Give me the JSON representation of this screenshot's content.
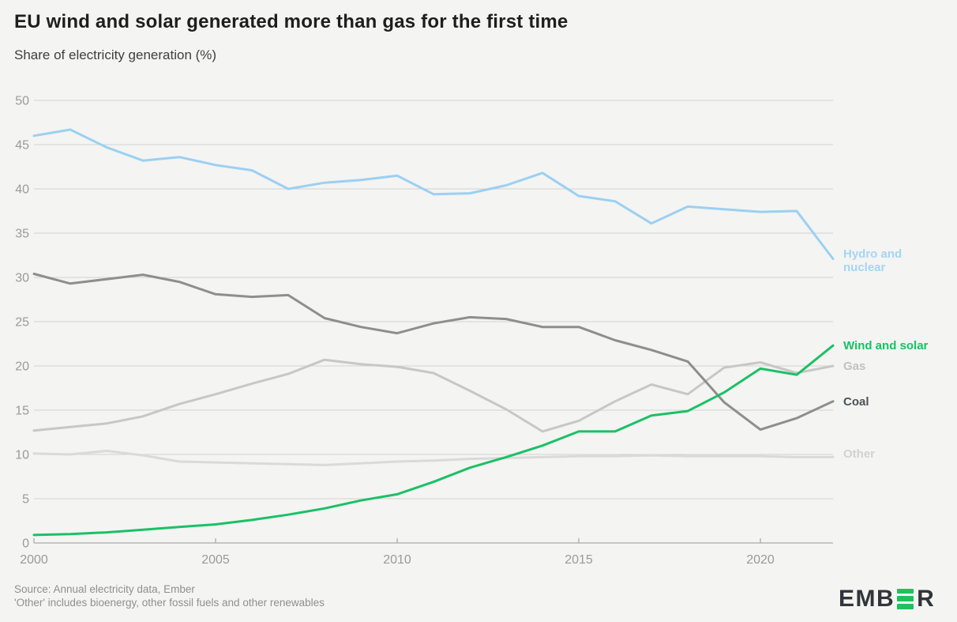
{
  "header": {
    "title": "EU wind and solar generated more than gas for the first time",
    "subtitle": "Share of electricity generation (%)"
  },
  "footer": {
    "source_line1": "Source: Annual electricity data, Ember",
    "source_line2": "'Other' includes bioenergy, other fossil fuels and other renewables",
    "logo_left": "EMB",
    "logo_right": "R"
  },
  "colors": {
    "background": "#f4f4f3",
    "gridline": "#d2d2d0",
    "axis_line": "#aaaaaa",
    "axis_text": "#9a9a9a",
    "logo_green": "#21c05f"
  },
  "chart_data": {
    "type": "line",
    "title": "EU wind and solar generated more than gas for the first time",
    "ylabel": "Share of electricity generation (%)",
    "ylim": [
      0,
      50
    ],
    "ytick_step": 5,
    "xticks": [
      2000,
      2005,
      2010,
      2015,
      2020
    ],
    "grid": true,
    "legend_position": "right-end-labels",
    "x": [
      2000,
      2001,
      2002,
      2003,
      2004,
      2005,
      2006,
      2007,
      2008,
      2009,
      2010,
      2011,
      2012,
      2013,
      2014,
      2015,
      2016,
      2017,
      2018,
      2019,
      2020,
      2021,
      2022
    ],
    "series": [
      {
        "name": "Other",
        "color": "#dadada",
        "label_lines": [
          "Other"
        ],
        "values": [
          10.1,
          10.0,
          10.4,
          9.9,
          9.2,
          9.1,
          9.0,
          8.9,
          8.8,
          9.0,
          9.2,
          9.3,
          9.5,
          9.6,
          9.7,
          9.8,
          9.8,
          9.9,
          9.8,
          9.8,
          9.8,
          9.7,
          9.7
        ]
      },
      {
        "name": "Gas",
        "color": "#c7c7c7",
        "label_lines": [
          "Gas"
        ],
        "values": [
          12.7,
          13.1,
          13.5,
          14.3,
          15.7,
          16.8,
          18.0,
          19.1,
          20.7,
          20.2,
          19.9,
          19.2,
          17.2,
          15.1,
          12.6,
          13.8,
          16.0,
          17.9,
          16.8,
          19.8,
          20.4,
          19.2,
          20.0
        ]
      },
      {
        "name": "Coal",
        "color": "#8e8e8e",
        "label_lines": [
          "Coal"
        ],
        "values": [
          30.4,
          29.3,
          29.8,
          30.3,
          29.5,
          28.1,
          27.8,
          28.0,
          25.4,
          24.4,
          23.7,
          24.8,
          25.5,
          25.3,
          24.4,
          24.4,
          22.9,
          21.8,
          20.5,
          15.9,
          12.8,
          14.1,
          16.0
        ]
      },
      {
        "name": "Hydro and nuclear",
        "color": "#9bd0f2",
        "label_lines": [
          "Hydro and",
          "nuclear"
        ],
        "values": [
          46.0,
          46.7,
          44.7,
          43.2,
          43.6,
          42.7,
          42.1,
          40.0,
          40.7,
          41.0,
          41.5,
          39.4,
          39.5,
          40.4,
          41.8,
          39.2,
          38.6,
          36.1,
          38.0,
          37.7,
          37.4,
          37.5,
          32.1
        ]
      },
      {
        "name": "Wind and solar",
        "color": "#1ac165",
        "label_lines": [
          "Wind and solar"
        ],
        "values": [
          0.9,
          1.0,
          1.2,
          1.5,
          1.8,
          2.1,
          2.6,
          3.2,
          3.9,
          4.8,
          5.5,
          6.9,
          8.5,
          9.7,
          11.0,
          12.6,
          12.6,
          14.4,
          14.9,
          17.0,
          19.7,
          19.0,
          22.3
        ]
      }
    ]
  }
}
